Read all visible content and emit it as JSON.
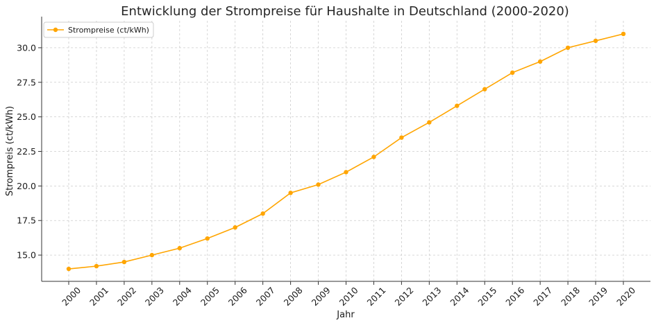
{
  "chart_data": {
    "type": "line",
    "title": "Entwicklung der Strompreise für Haushalte in Deutschland (2000-2020)",
    "xlabel": "Jahr",
    "ylabel": "Strompreis (ct/kWh)",
    "categories": [
      "2000",
      "2001",
      "2002",
      "2003",
      "2004",
      "2005",
      "2006",
      "2007",
      "2008",
      "2009",
      "2010",
      "2011",
      "2012",
      "2013",
      "2014",
      "2015",
      "2016",
      "2017",
      "2018",
      "2019",
      "2020"
    ],
    "series": [
      {
        "name": "Strompreise (ct/kWh)",
        "color": "#FFA500",
        "values": [
          14.0,
          14.2,
          14.5,
          15.0,
          15.5,
          16.2,
          17.0,
          18.0,
          19.5,
          20.1,
          21.0,
          22.1,
          23.5,
          24.6,
          25.8,
          27.0,
          28.2,
          29.0,
          30.0,
          30.5,
          31.0
        ]
      }
    ],
    "ylim": [
      13.1,
      31.95
    ],
    "yticks": [
      "15.0",
      "17.5",
      "20.0",
      "22.5",
      "25.0",
      "27.5",
      "30.0"
    ],
    "grid": true,
    "legend_position": "top-left"
  }
}
